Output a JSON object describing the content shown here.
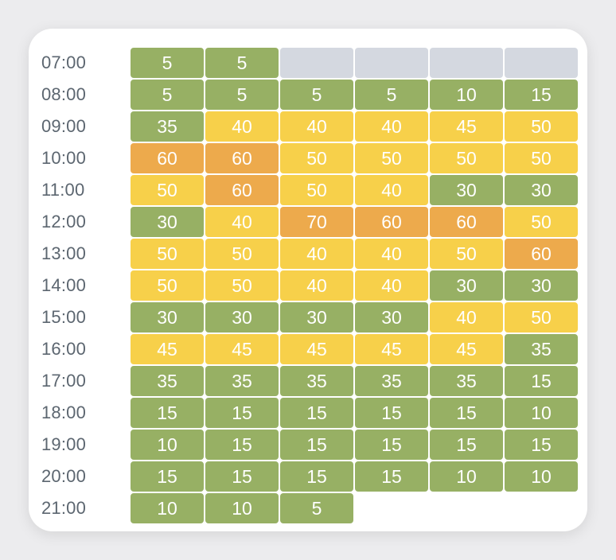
{
  "colors": {
    "low": "#97b064",
    "medium": "#f7d04a",
    "high": "#edaa4c",
    "unavailable": "#d4d8e0"
  },
  "rows": [
    {
      "time": "07:00",
      "cells": [
        {
          "value": "5",
          "level": "low"
        },
        {
          "value": "5",
          "level": "low"
        },
        {
          "value": "",
          "level": "unavailable"
        },
        {
          "value": "",
          "level": "unavailable"
        },
        {
          "value": "",
          "level": "unavailable"
        },
        {
          "value": "",
          "level": "unavailable"
        }
      ]
    },
    {
      "time": "08:00",
      "cells": [
        {
          "value": "5",
          "level": "low"
        },
        {
          "value": "5",
          "level": "low"
        },
        {
          "value": "5",
          "level": "low"
        },
        {
          "value": "5",
          "level": "low"
        },
        {
          "value": "10",
          "level": "low"
        },
        {
          "value": "15",
          "level": "low"
        }
      ]
    },
    {
      "time": "09:00",
      "cells": [
        {
          "value": "35",
          "level": "low"
        },
        {
          "value": "40",
          "level": "medium"
        },
        {
          "value": "40",
          "level": "medium"
        },
        {
          "value": "40",
          "level": "medium"
        },
        {
          "value": "45",
          "level": "medium"
        },
        {
          "value": "50",
          "level": "medium"
        }
      ]
    },
    {
      "time": "10:00",
      "cells": [
        {
          "value": "60",
          "level": "high"
        },
        {
          "value": "60",
          "level": "high"
        },
        {
          "value": "50",
          "level": "medium"
        },
        {
          "value": "50",
          "level": "medium"
        },
        {
          "value": "50",
          "level": "medium"
        },
        {
          "value": "50",
          "level": "medium"
        }
      ]
    },
    {
      "time": "11:00",
      "cells": [
        {
          "value": "50",
          "level": "medium"
        },
        {
          "value": "60",
          "level": "high"
        },
        {
          "value": "50",
          "level": "medium"
        },
        {
          "value": "40",
          "level": "medium"
        },
        {
          "value": "30",
          "level": "low"
        },
        {
          "value": "30",
          "level": "low"
        }
      ]
    },
    {
      "time": "12:00",
      "cells": [
        {
          "value": "30",
          "level": "low"
        },
        {
          "value": "40",
          "level": "medium"
        },
        {
          "value": "70",
          "level": "high"
        },
        {
          "value": "60",
          "level": "high"
        },
        {
          "value": "60",
          "level": "high"
        },
        {
          "value": "50",
          "level": "medium"
        }
      ]
    },
    {
      "time": "13:00",
      "cells": [
        {
          "value": "50",
          "level": "medium"
        },
        {
          "value": "50",
          "level": "medium"
        },
        {
          "value": "40",
          "level": "medium"
        },
        {
          "value": "40",
          "level": "medium"
        },
        {
          "value": "50",
          "level": "medium"
        },
        {
          "value": "60",
          "level": "high"
        }
      ]
    },
    {
      "time": "14:00",
      "cells": [
        {
          "value": "50",
          "level": "medium"
        },
        {
          "value": "50",
          "level": "medium"
        },
        {
          "value": "40",
          "level": "medium"
        },
        {
          "value": "40",
          "level": "medium"
        },
        {
          "value": "30",
          "level": "low"
        },
        {
          "value": "30",
          "level": "low"
        }
      ]
    },
    {
      "time": "15:00",
      "cells": [
        {
          "value": "30",
          "level": "low"
        },
        {
          "value": "30",
          "level": "low"
        },
        {
          "value": "30",
          "level": "low"
        },
        {
          "value": "30",
          "level": "low"
        },
        {
          "value": "40",
          "level": "medium"
        },
        {
          "value": "50",
          "level": "medium"
        }
      ]
    },
    {
      "time": "16:00",
      "cells": [
        {
          "value": "45",
          "level": "medium"
        },
        {
          "value": "45",
          "level": "medium"
        },
        {
          "value": "45",
          "level": "medium"
        },
        {
          "value": "45",
          "level": "medium"
        },
        {
          "value": "45",
          "level": "medium"
        },
        {
          "value": "35",
          "level": "low"
        }
      ]
    },
    {
      "time": "17:00",
      "cells": [
        {
          "value": "35",
          "level": "low"
        },
        {
          "value": "35",
          "level": "low"
        },
        {
          "value": "35",
          "level": "low"
        },
        {
          "value": "35",
          "level": "low"
        },
        {
          "value": "35",
          "level": "low"
        },
        {
          "value": "15",
          "level": "low"
        }
      ]
    },
    {
      "time": "18:00",
      "cells": [
        {
          "value": "15",
          "level": "low"
        },
        {
          "value": "15",
          "level": "low"
        },
        {
          "value": "15",
          "level": "low"
        },
        {
          "value": "15",
          "level": "low"
        },
        {
          "value": "15",
          "level": "low"
        },
        {
          "value": "10",
          "level": "low"
        }
      ]
    },
    {
      "time": "19:00",
      "cells": [
        {
          "value": "10",
          "level": "low"
        },
        {
          "value": "15",
          "level": "low"
        },
        {
          "value": "15",
          "level": "low"
        },
        {
          "value": "15",
          "level": "low"
        },
        {
          "value": "15",
          "level": "low"
        },
        {
          "value": "15",
          "level": "low"
        }
      ]
    },
    {
      "time": "20:00",
      "cells": [
        {
          "value": "15",
          "level": "low"
        },
        {
          "value": "15",
          "level": "low"
        },
        {
          "value": "15",
          "level": "low"
        },
        {
          "value": "15",
          "level": "low"
        },
        {
          "value": "10",
          "level": "low"
        },
        {
          "value": "10",
          "level": "low"
        }
      ]
    },
    {
      "time": "21:00",
      "cells": [
        {
          "value": "10",
          "level": "low"
        },
        {
          "value": "10",
          "level": "low"
        },
        {
          "value": "5",
          "level": "low"
        }
      ]
    }
  ]
}
